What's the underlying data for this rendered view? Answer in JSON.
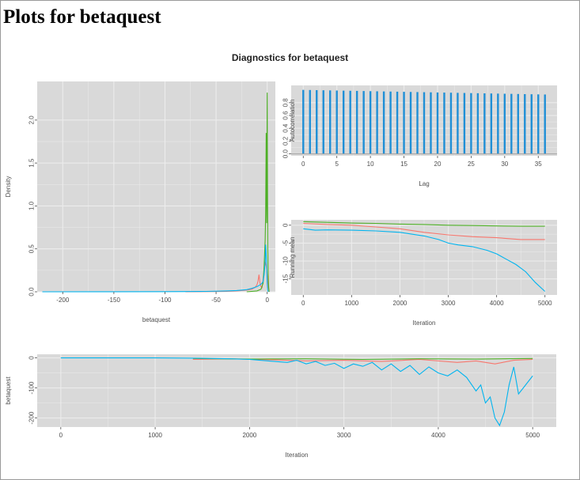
{
  "page": {
    "title": "Plots for betaquest"
  },
  "figure": {
    "title": "Diagnostics for betaquest"
  },
  "colors": {
    "panel_bg": "#d9d9d9",
    "grid": "#ececec",
    "series1": "#f8766d",
    "series2": "#4daf25",
    "series3": "#00b4ef"
  },
  "chart_data": [
    {
      "id": "density",
      "type": "line",
      "xlabel": "betaquest",
      "ylabel": "Density",
      "xlim": [
        -225,
        8
      ],
      "ylim": [
        0,
        2.45
      ],
      "xticks": [
        -200,
        -150,
        -100,
        -50,
        0
      ],
      "xtick_labels": [
        "-200",
        "-150",
        "-100",
        "-50",
        "0"
      ],
      "yticks": [
        0,
        0.5,
        1,
        1.5,
        2
      ],
      "ytick_labels": [
        "0.0",
        "0.5",
        "1.0",
        "1.5",
        "2.0"
      ],
      "grid": true,
      "series": [
        {
          "color": "#f8766d",
          "x": [
            -80,
            -40,
            -30,
            -20,
            -15,
            -12,
            -10,
            -9,
            -8,
            -7,
            -6,
            -5,
            -4,
            -3,
            -2,
            -1,
            0,
            1,
            2
          ],
          "y": [
            0,
            0.005,
            0.01,
            0.02,
            0.03,
            0.05,
            0.08,
            0.12,
            0.2,
            0.1,
            0.06,
            0.05,
            0.15,
            0.25,
            0.35,
            0.3,
            0.2,
            0.05,
            0
          ]
        },
        {
          "color": "#4daf25",
          "x": [
            -20,
            -10,
            -6,
            -4,
            -3,
            -2,
            -1.5,
            -1,
            -0.5,
            0,
            0.3,
            0.6,
            1,
            1.5,
            2
          ],
          "y": [
            0,
            0.01,
            0.03,
            0.1,
            0.3,
            0.6,
            0.9,
            1.85,
            0.8,
            2.32,
            1.2,
            0.5,
            0.2,
            0.05,
            0
          ]
        },
        {
          "color": "#00b4ef",
          "x": [
            -220,
            -150,
            -100,
            -60,
            -40,
            -30,
            -20,
            -15,
            -10,
            -7,
            -5,
            -4,
            -3,
            -2,
            -1.5,
            -1,
            -0.5,
            0,
            0.5,
            1
          ],
          "y": [
            0,
            0.001,
            0.002,
            0.005,
            0.01,
            0.015,
            0.025,
            0.04,
            0.06,
            0.08,
            0.1,
            0.12,
            0.2,
            0.35,
            0.55,
            0.45,
            0.3,
            0.1,
            0.02,
            0
          ]
        }
      ]
    },
    {
      "id": "acf",
      "type": "bar",
      "xlabel": "Lag",
      "ylabel": "Autocorrelation",
      "xlim": [
        -1.8,
        37.8
      ],
      "ylim": [
        -0.03,
        1.07
      ],
      "xticks": [
        0,
        5,
        10,
        15,
        20,
        25,
        30,
        35
      ],
      "xtick_labels": [
        "0",
        "5",
        "10",
        "15",
        "20",
        "25",
        "30",
        "35"
      ],
      "yticks": [
        0,
        0.2,
        0.4,
        0.6,
        0.8
      ],
      "ytick_labels": [
        "0.0",
        "0.2",
        "0.4",
        "0.6",
        "0.8"
      ],
      "grid": true,
      "color": "#1f8fd6",
      "x": [
        0,
        1,
        2,
        3,
        4,
        5,
        6,
        7,
        8,
        9,
        10,
        11,
        12,
        13,
        14,
        15,
        16,
        17,
        18,
        19,
        20,
        21,
        22,
        23,
        24,
        25,
        26,
        27,
        28,
        29,
        30,
        31,
        32,
        33,
        34,
        35,
        36
      ],
      "values": [
        1.0,
        0.998,
        0.996,
        0.994,
        0.992,
        0.99,
        0.988,
        0.986,
        0.984,
        0.982,
        0.98,
        0.978,
        0.976,
        0.974,
        0.972,
        0.97,
        0.968,
        0.966,
        0.964,
        0.962,
        0.96,
        0.958,
        0.956,
        0.954,
        0.952,
        0.95,
        0.948,
        0.946,
        0.944,
        0.942,
        0.94,
        0.938,
        0.936,
        0.934,
        0.932,
        0.93,
        0.928
      ]
    },
    {
      "id": "running-mean",
      "type": "line",
      "xlabel": "Iteration",
      "ylabel": "Running mean",
      "xlim": [
        -250,
        5250
      ],
      "ylim": [
        -19.5,
        1.5
      ],
      "xticks": [
        0,
        1000,
        2000,
        3000,
        4000,
        5000
      ],
      "xtick_labels": [
        "0",
        "1000",
        "2000",
        "3000",
        "4000",
        "5000"
      ],
      "yticks": [
        0,
        -5,
        -10,
        -15
      ],
      "ytick_labels": [
        "0",
        "-5",
        "-10",
        "-15"
      ],
      "grid": true,
      "series": [
        {
          "color": "#f8766d",
          "x": [
            0,
            500,
            1000,
            1500,
            2000,
            2500,
            3000,
            3500,
            4000,
            4500,
            5000
          ],
          "y": [
            0.5,
            0.2,
            0,
            -0.5,
            -1,
            -2,
            -2.7,
            -3.2,
            -3.5,
            -4,
            -4
          ]
        },
        {
          "color": "#4daf25",
          "x": [
            0,
            500,
            1000,
            1500,
            2000,
            2500,
            3000,
            3500,
            4000,
            4500,
            5000
          ],
          "y": [
            1,
            0.8,
            0.6,
            0.5,
            0.3,
            0.2,
            0,
            -0.1,
            -0.2,
            -0.3,
            -0.3
          ]
        },
        {
          "color": "#00b4ef",
          "x": [
            0,
            250,
            500,
            1000,
            1500,
            2000,
            2500,
            2800,
            3000,
            3200,
            3500,
            3800,
            4000,
            4200,
            4400,
            4600,
            4800,
            5000
          ],
          "y": [
            -1,
            -1.4,
            -1.3,
            -1.4,
            -1.6,
            -2,
            -3,
            -4,
            -5,
            -5.5,
            -6,
            -7,
            -8,
            -9.5,
            -11,
            -13,
            -16,
            -18.5
          ]
        }
      ]
    },
    {
      "id": "trace",
      "type": "line",
      "xlabel": "Iteration",
      "ylabel": "betaquest",
      "xlim": [
        -250,
        5250
      ],
      "ylim": [
        -230,
        12
      ],
      "xticks": [
        0,
        1000,
        2000,
        3000,
        4000,
        5000
      ],
      "xtick_labels": [
        "0",
        "1000",
        "2000",
        "3000",
        "4000",
        "5000"
      ],
      "yticks": [
        0,
        -100,
        -200
      ],
      "ytick_labels": [
        "0",
        "-100",
        "-200"
      ],
      "grid": true,
      "series": [
        {
          "color": "#f8766d",
          "x": [
            1400,
            1800,
            2200,
            2600,
            3000,
            3400,
            3800,
            4200,
            4400,
            4600,
            4800,
            5000
          ],
          "y": [
            -5,
            -3,
            -6,
            -10,
            -8,
            -12,
            -5,
            -15,
            -10,
            -20,
            -8,
            -5
          ]
        },
        {
          "color": "#4daf25",
          "x": [
            1400,
            2000,
            2600,
            3200,
            3800,
            4400,
            5000
          ],
          "y": [
            -2,
            -4,
            -3,
            -5,
            -3,
            -4,
            -2
          ]
        },
        {
          "color": "#00b4ef",
          "x": [
            0,
            1000,
            1400,
            1800,
            2000,
            2200,
            2400,
            2500,
            2600,
            2700,
            2800,
            2900,
            3000,
            3100,
            3200,
            3300,
            3400,
            3500,
            3600,
            3700,
            3800,
            3900,
            4000,
            4100,
            4200,
            4300,
            4400,
            4450,
            4500,
            4550,
            4600,
            4650,
            4700,
            4750,
            4800,
            4850,
            4900,
            4950,
            5000
          ],
          "y": [
            0,
            0,
            -1,
            -3,
            -5,
            -10,
            -15,
            -8,
            -20,
            -12,
            -25,
            -18,
            -35,
            -20,
            -28,
            -15,
            -40,
            -20,
            -45,
            -25,
            -55,
            -30,
            -50,
            -60,
            -40,
            -65,
            -110,
            -90,
            -150,
            -130,
            -200,
            -225,
            -180,
            -90,
            -30,
            -120,
            -100,
            -80,
            -60
          ]
        }
      ]
    }
  ]
}
